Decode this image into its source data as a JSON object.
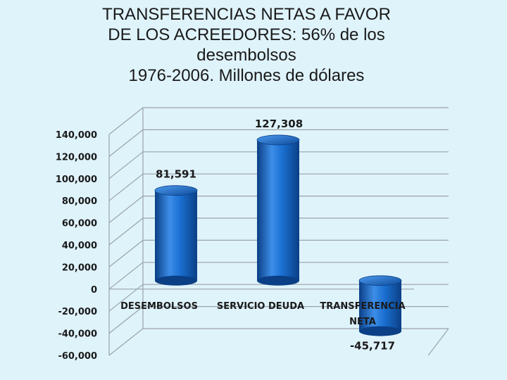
{
  "title_lines": [
    "TRANSFERENCIAS NETAS A FAVOR",
    "DE LOS ACREEDORES: 56% de los",
    "desembolsos",
    "1976-2006.  Millones de dólares"
  ],
  "chart_data": {
    "type": "bar",
    "title": "TRANSFERENCIAS NETAS A FAVOR DE LOS ACREEDORES: 56% de los desembolsos 1976-2006.  Millones de dólares",
    "categories": [
      "DESEMBOLSOS",
      "SERVICIO DEUDA",
      "TRANSFERENCIA NETA"
    ],
    "category_lines": [
      [
        "DESEMBOLSOS"
      ],
      [
        "SERVICIO DEUDA"
      ],
      [
        "TRANSFERENCIA",
        "NETA"
      ]
    ],
    "values": [
      81591,
      127308,
      -45717
    ],
    "data_labels": [
      "81,591",
      "127,308",
      "-45,717"
    ],
    "ylim": [
      -60000,
      140000
    ],
    "yticks": [
      "140,000",
      "120,000",
      "100,000",
      "80,000",
      "60,000",
      "40,000",
      "20,000",
      "0",
      "-20,000",
      "-40,000",
      "-60,000"
    ],
    "grid": true,
    "style": "3d-cylinder",
    "colors": {
      "bar": "#1565c0",
      "bar_light": "#3d8ee8",
      "bar_dark": "#0b3f86",
      "grid": "#9aa3aa"
    }
  }
}
